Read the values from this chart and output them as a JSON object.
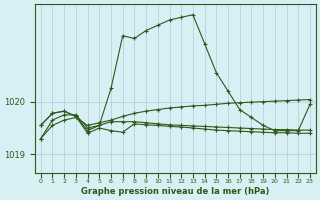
{
  "xlabel": "Graphe pression niveau de la mer (hPa)",
  "x": [
    0,
    1,
    2,
    3,
    4,
    5,
    6,
    7,
    8,
    9,
    10,
    11,
    12,
    13,
    14,
    15,
    16,
    17,
    18,
    19,
    20,
    21,
    22,
    23
  ],
  "series1": [
    1019.3,
    1019.65,
    1019.75,
    1019.75,
    1019.5,
    1019.55,
    1020.25,
    1021.25,
    1021.2,
    1021.35,
    1021.45,
    1021.55,
    1021.6,
    1021.65,
    1021.1,
    1020.55,
    1020.2,
    1019.85,
    1019.7,
    1019.55,
    1019.45,
    1019.45,
    1019.45,
    1019.95
  ],
  "series2": [
    1019.3,
    1019.55,
    1019.65,
    1019.7,
    1019.55,
    1019.6,
    1019.65,
    1019.72,
    1019.78,
    1019.82,
    1019.85,
    1019.88,
    1019.9,
    1019.92,
    1019.93,
    1019.95,
    1019.97,
    1019.98,
    1019.99,
    1020.0,
    1020.01,
    1020.02,
    1020.03,
    1020.04
  ],
  "series3": [
    1019.55,
    1019.78,
    1019.82,
    1019.72,
    1019.45,
    1019.55,
    1019.62,
    1019.62,
    1019.62,
    1019.6,
    1019.58,
    1019.56,
    1019.55,
    1019.54,
    1019.53,
    1019.52,
    1019.51,
    1019.5,
    1019.49,
    1019.48,
    1019.47,
    1019.47,
    1019.46,
    1019.46
  ],
  "series4": [
    1019.55,
    1019.78,
    1019.82,
    1019.72,
    1019.4,
    1019.5,
    1019.45,
    1019.42,
    1019.58,
    1019.56,
    1019.55,
    1019.53,
    1019.52,
    1019.5,
    1019.48,
    1019.46,
    1019.45,
    1019.44,
    1019.43,
    1019.42,
    1019.41,
    1019.41,
    1019.4,
    1019.4
  ],
  "line_color": "#2d5a1b",
  "bg_color": "#d8eff4",
  "grid_color": "#aacfdb",
  "ylim": [
    1018.65,
    1021.85
  ],
  "yticks": [
    1019,
    1020
  ],
  "xlim": [
    -0.5,
    23.5
  ]
}
